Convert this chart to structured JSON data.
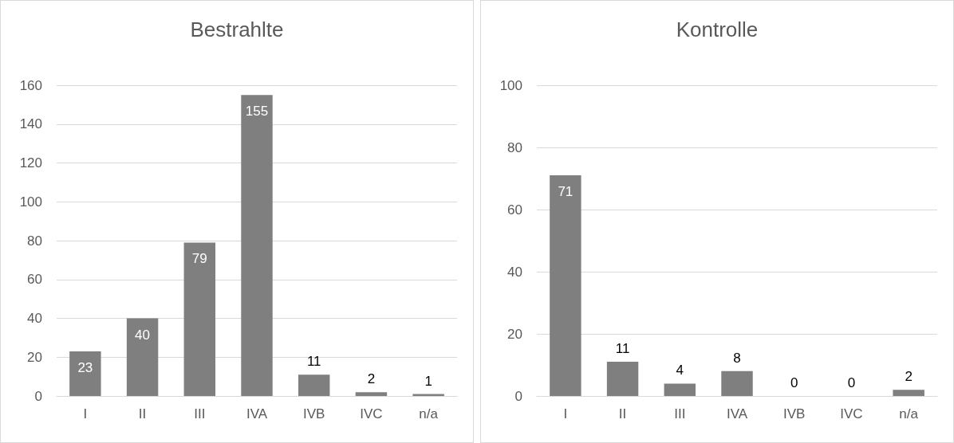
{
  "chart_data": [
    {
      "type": "bar",
      "title": "Bestrahlte",
      "categories": [
        "I",
        "II",
        "III",
        "IVA",
        "IVB",
        "IVC",
        "n/a"
      ],
      "values": [
        23,
        40,
        79,
        155,
        11,
        2,
        1
      ],
      "color": "#7f7f7f",
      "ylim": [
        0,
        160
      ],
      "yticks": [
        0,
        20,
        40,
        60,
        80,
        100,
        120,
        140,
        160
      ],
      "grid": "y",
      "data_labels": true
    },
    {
      "type": "bar",
      "title": "Kontrolle",
      "categories": [
        "I",
        "II",
        "III",
        "IVA",
        "IVB",
        "IVC",
        "n/a"
      ],
      "values": [
        71,
        11,
        4,
        8,
        0,
        0,
        2
      ],
      "color": "#7f7f7f",
      "ylim": [
        0,
        100
      ],
      "yticks": [
        0,
        20,
        40,
        60,
        80,
        100
      ],
      "grid": "y",
      "data_labels": true
    }
  ]
}
